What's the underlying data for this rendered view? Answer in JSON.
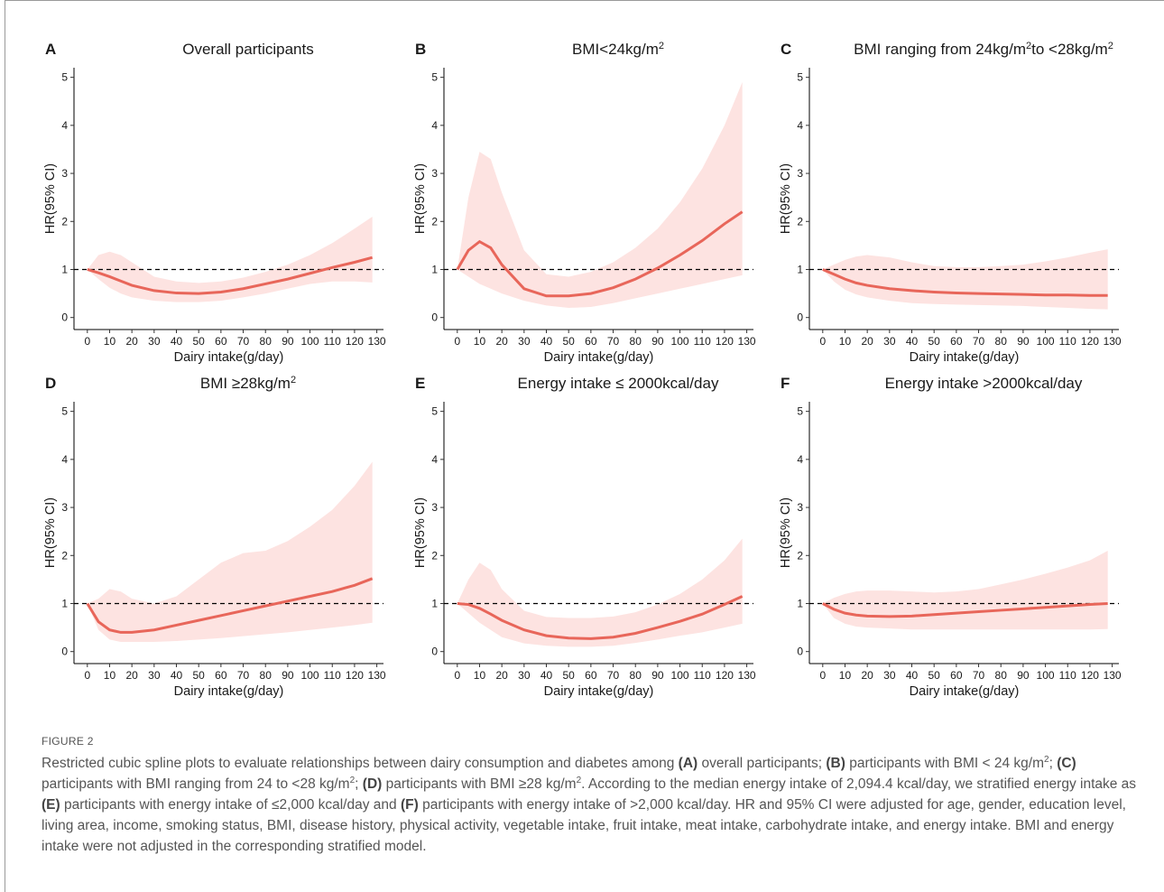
{
  "chart_data": [
    {
      "type": "line",
      "panel": "A",
      "title": [
        {
          "text": "Overall participants"
        }
      ],
      "xlabel": "Dairy intake(g/day)",
      "ylabel": "HR(95% CI)",
      "x": [
        0,
        5,
        10,
        15,
        20,
        30,
        40,
        50,
        60,
        70,
        80,
        90,
        100,
        110,
        120,
        128
      ],
      "values": [
        1,
        0.93,
        0.85,
        0.76,
        0.67,
        0.56,
        0.51,
        0.5,
        0.53,
        0.6,
        0.7,
        0.8,
        0.92,
        1.04,
        1.15,
        1.25
      ],
      "lower": [
        1,
        0.8,
        0.62,
        0.5,
        0.42,
        0.35,
        0.32,
        0.32,
        0.35,
        0.42,
        0.5,
        0.6,
        0.7,
        0.75,
        0.75,
        0.73
      ],
      "upper": [
        1,
        1.3,
        1.37,
        1.3,
        1.15,
        0.85,
        0.75,
        0.72,
        0.75,
        0.83,
        0.95,
        1.1,
        1.3,
        1.55,
        1.85,
        2.1
      ],
      "color": "#e8665a",
      "band_color": "#fde3e1",
      "reference_line": 1,
      "xlim": [
        -6,
        133
      ],
      "xticks": [
        0,
        10,
        20,
        30,
        40,
        50,
        60,
        70,
        80,
        90,
        100,
        110,
        120,
        130
      ],
      "ylim": [
        -0.25,
        5.2
      ],
      "yticks": [
        0,
        1,
        2,
        3,
        4,
        5
      ]
    },
    {
      "type": "line",
      "panel": "B",
      "title": [
        {
          "text": "BMI<24kg/m"
        },
        {
          "text": "2",
          "sup": true
        }
      ],
      "xlabel": "Dairy intake(g/day)",
      "ylabel": "HR(95% CI)",
      "x": [
        0,
        5,
        10,
        15,
        20,
        30,
        40,
        50,
        60,
        70,
        80,
        90,
        100,
        110,
        120,
        128
      ],
      "values": [
        1,
        1.4,
        1.58,
        1.45,
        1.1,
        0.6,
        0.45,
        0.45,
        0.5,
        0.62,
        0.8,
        1.03,
        1.3,
        1.6,
        1.95,
        2.2
      ],
      "lower": [
        1,
        0.85,
        0.7,
        0.6,
        0.5,
        0.35,
        0.25,
        0.2,
        0.22,
        0.3,
        0.4,
        0.5,
        0.6,
        0.7,
        0.8,
        0.88
      ],
      "upper": [
        1,
        2.5,
        3.45,
        3.3,
        2.6,
        1.4,
        0.9,
        0.85,
        0.95,
        1.15,
        1.45,
        1.85,
        2.4,
        3.1,
        4.0,
        4.9
      ],
      "color": "#e8665a",
      "band_color": "#fde3e1",
      "reference_line": 1,
      "xlim": [
        -6,
        133
      ],
      "xticks": [
        0,
        10,
        20,
        30,
        40,
        50,
        60,
        70,
        80,
        90,
        100,
        110,
        120,
        130
      ],
      "ylim": [
        -0.25,
        5.2
      ],
      "yticks": [
        0,
        1,
        2,
        3,
        4,
        5
      ]
    },
    {
      "type": "line",
      "panel": "C",
      "title": [
        {
          "text": "BMI ranging from 24kg/m"
        },
        {
          "text": "2",
          "sup": true
        },
        {
          "text": "to <28kg/m"
        },
        {
          "text": "2",
          "sup": true
        }
      ],
      "xlabel": "Dairy intake(g/day)",
      "ylabel": "HR(95% CI)",
      "x": [
        0,
        5,
        10,
        15,
        20,
        30,
        40,
        50,
        60,
        70,
        80,
        90,
        100,
        110,
        120,
        128
      ],
      "values": [
        1,
        0.9,
        0.8,
        0.72,
        0.67,
        0.6,
        0.56,
        0.53,
        0.51,
        0.5,
        0.49,
        0.48,
        0.47,
        0.47,
        0.46,
        0.46
      ],
      "lower": [
        1,
        0.75,
        0.58,
        0.48,
        0.42,
        0.35,
        0.3,
        0.28,
        0.27,
        0.26,
        0.25,
        0.24,
        0.22,
        0.2,
        0.18,
        0.17
      ],
      "upper": [
        1,
        1.1,
        1.2,
        1.27,
        1.3,
        1.25,
        1.15,
        1.07,
        1.05,
        1.05,
        1.07,
        1.1,
        1.17,
        1.25,
        1.35,
        1.42
      ],
      "color": "#e8665a",
      "band_color": "#fde3e1",
      "reference_line": 1,
      "xlim": [
        -6,
        133
      ],
      "xticks": [
        0,
        10,
        20,
        30,
        40,
        50,
        60,
        70,
        80,
        90,
        100,
        110,
        120,
        130
      ],
      "ylim": [
        -0.25,
        5.2
      ],
      "yticks": [
        0,
        1,
        2,
        3,
        4,
        5
      ]
    },
    {
      "type": "line",
      "panel": "D",
      "title": [
        {
          "text": "BMI ≥28kg/m"
        },
        {
          "text": "2",
          "sup": true
        }
      ],
      "xlabel": "Dairy intake(g/day)",
      "ylabel": "HR(95% CI)",
      "x": [
        0,
        5,
        10,
        15,
        20,
        30,
        40,
        50,
        60,
        70,
        80,
        90,
        100,
        110,
        120,
        128
      ],
      "values": [
        1,
        0.62,
        0.45,
        0.4,
        0.4,
        0.45,
        0.55,
        0.65,
        0.75,
        0.85,
        0.95,
        1.05,
        1.15,
        1.25,
        1.38,
        1.52
      ],
      "lower": [
        1,
        0.45,
        0.25,
        0.2,
        0.2,
        0.2,
        0.22,
        0.25,
        0.28,
        0.32,
        0.36,
        0.4,
        0.45,
        0.5,
        0.55,
        0.6
      ],
      "upper": [
        1,
        1.1,
        1.3,
        1.25,
        1.1,
        1.0,
        1.15,
        1.5,
        1.85,
        2.05,
        2.1,
        2.3,
        2.6,
        2.95,
        3.45,
        3.95
      ],
      "color": "#e8665a",
      "band_color": "#fde3e1",
      "reference_line": 1,
      "xlim": [
        -6,
        133
      ],
      "xticks": [
        0,
        10,
        20,
        30,
        40,
        50,
        60,
        70,
        80,
        90,
        100,
        110,
        120,
        130
      ],
      "ylim": [
        -0.25,
        5.2
      ],
      "yticks": [
        0,
        1,
        2,
        3,
        4,
        5
      ]
    },
    {
      "type": "line",
      "panel": "E",
      "title": [
        {
          "text": "Energy intake ≤ 2000kcal/day"
        }
      ],
      "xlabel": "Dairy intake(g/day)",
      "ylabel": "HR(95% CI)",
      "x": [
        0,
        5,
        10,
        15,
        20,
        30,
        40,
        50,
        60,
        70,
        80,
        90,
        100,
        110,
        120,
        128
      ],
      "values": [
        1,
        0.98,
        0.9,
        0.78,
        0.65,
        0.45,
        0.33,
        0.28,
        0.27,
        0.3,
        0.38,
        0.5,
        0.63,
        0.78,
        0.98,
        1.15
      ],
      "lower": [
        1,
        0.8,
        0.6,
        0.45,
        0.3,
        0.17,
        0.12,
        0.1,
        0.1,
        0.12,
        0.18,
        0.25,
        0.33,
        0.4,
        0.5,
        0.58
      ],
      "upper": [
        1,
        1.5,
        1.85,
        1.7,
        1.3,
        0.85,
        0.72,
        0.7,
        0.7,
        0.73,
        0.82,
        0.98,
        1.2,
        1.5,
        1.9,
        2.35
      ],
      "color": "#e8665a",
      "band_color": "#fde3e1",
      "reference_line": 1,
      "xlim": [
        -6,
        133
      ],
      "xticks": [
        0,
        10,
        20,
        30,
        40,
        50,
        60,
        70,
        80,
        90,
        100,
        110,
        120,
        130
      ],
      "ylim": [
        -0.25,
        5.2
      ],
      "yticks": [
        0,
        1,
        2,
        3,
        4,
        5
      ]
    },
    {
      "type": "line",
      "panel": "F",
      "title": [
        {
          "text": "Energy intake >2000kcal/day"
        }
      ],
      "xlabel": "Dairy intake(g/day)",
      "ylabel": "HR(95% CI)",
      "x": [
        0,
        5,
        10,
        15,
        20,
        30,
        40,
        50,
        60,
        70,
        80,
        90,
        100,
        110,
        120,
        128
      ],
      "values": [
        1,
        0.88,
        0.8,
        0.76,
        0.74,
        0.73,
        0.74,
        0.77,
        0.8,
        0.83,
        0.86,
        0.89,
        0.92,
        0.95,
        0.98,
        1.0
      ],
      "lower": [
        1,
        0.7,
        0.58,
        0.52,
        0.5,
        0.48,
        0.46,
        0.46,
        0.46,
        0.46,
        0.46,
        0.46,
        0.46,
        0.46,
        0.46,
        0.47
      ],
      "upper": [
        1,
        1.12,
        1.2,
        1.25,
        1.27,
        1.27,
        1.25,
        1.23,
        1.25,
        1.3,
        1.4,
        1.5,
        1.62,
        1.75,
        1.9,
        2.1
      ],
      "color": "#e8665a",
      "band_color": "#fde3e1",
      "reference_line": 1,
      "xlim": [
        -6,
        133
      ],
      "xticks": [
        0,
        10,
        20,
        30,
        40,
        50,
        60,
        70,
        80,
        90,
        100,
        110,
        120,
        130
      ],
      "ylim": [
        -0.25,
        5.2
      ],
      "yticks": [
        0,
        1,
        2,
        3,
        4,
        5
      ]
    }
  ],
  "figure_label": "FIGURE 2",
  "caption": [
    {
      "text": "Restricted cubic spline plots to evaluate relationships between dairy consumption and diabetes among "
    },
    {
      "text": "(A)",
      "bold": true
    },
    {
      "text": " overall participants; "
    },
    {
      "text": "(B)",
      "bold": true
    },
    {
      "text": " participants with BMI < 24 kg/m"
    },
    {
      "text": "2",
      "sup": true
    },
    {
      "text": "; "
    },
    {
      "text": "(C)",
      "bold": true
    },
    {
      "text": " participants with BMI ranging from 24 to <28 kg/m"
    },
    {
      "text": "2",
      "sup": true
    },
    {
      "text": "; "
    },
    {
      "text": "(D)",
      "bold": true
    },
    {
      "text": " participants with BMI ≥28 kg/m"
    },
    {
      "text": "2",
      "sup": true
    },
    {
      "text": ". According to the median energy intake of 2,094.4 kcal/day, we stratified energy intake as "
    },
    {
      "text": "(E)",
      "bold": true
    },
    {
      "text": " participants with energy intake of ≤2,000 kcal/day and "
    },
    {
      "text": "(F)",
      "bold": true
    },
    {
      "text": " participants with energy intake of >2,000 kcal/day. HR and 95% CI were adjusted for age, gender, education level, living area, income, smoking status, BMI, disease history, physical activity, vegetable intake, fruit intake, meat intake, carbohydrate intake, and energy intake. BMI and energy intake were not adjusted in the corresponding stratified model."
    }
  ]
}
